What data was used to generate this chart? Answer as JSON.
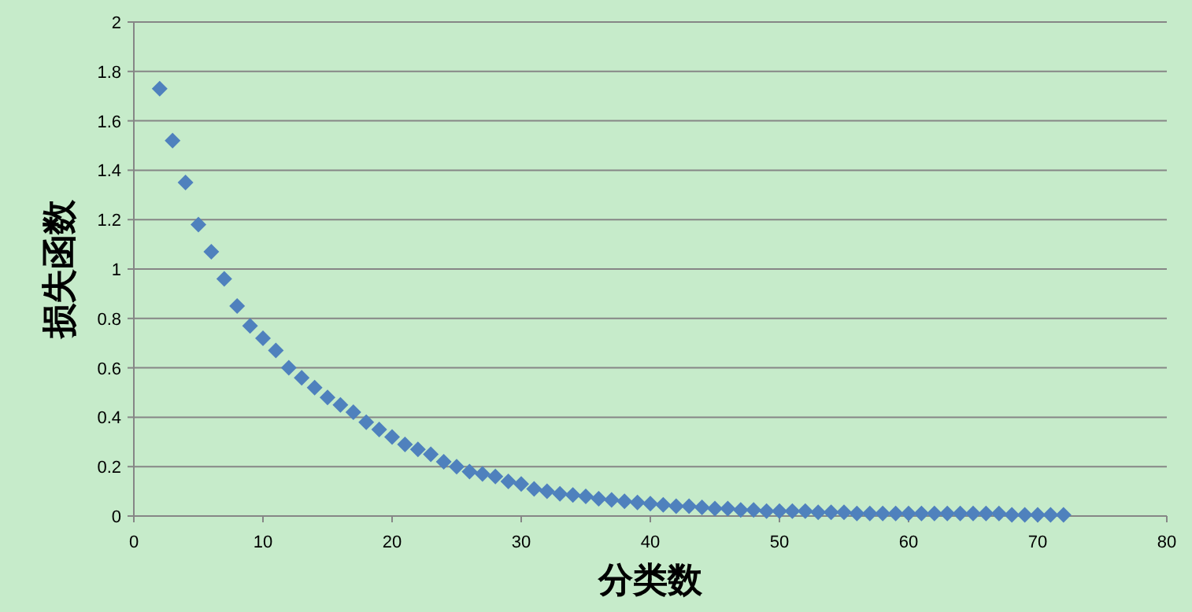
{
  "chart_data": {
    "type": "scatter",
    "xlabel": "分类数",
    "ylabel": "损失函数",
    "xlim": [
      0,
      80
    ],
    "xticks": [
      0,
      10,
      20,
      30,
      40,
      50,
      60,
      70,
      80
    ],
    "ylim": [
      0,
      2
    ],
    "yticks": [
      0,
      {
        "value": 0.2,
        "label": "0.2"
      },
      {
        "value": 0.4,
        "label": "0.4"
      },
      {
        "value": 0.6,
        "label": "0.6"
      },
      {
        "value": 0.8,
        "label": "0.8"
      },
      1,
      {
        "value": 1.2,
        "label": "1.2"
      },
      {
        "value": 1.4,
        "label": "1.4"
      },
      {
        "value": 1.6,
        "label": "1.6"
      },
      {
        "value": 1.8,
        "label": "1.8"
      },
      2
    ],
    "grid": "y",
    "marker": "diamond",
    "series": [
      {
        "color": "#4f81bd",
        "x": [
          2,
          3,
          4,
          5,
          6,
          7,
          8,
          9,
          10,
          11,
          12,
          13,
          14,
          15,
          16,
          17,
          18,
          19,
          20,
          21,
          22,
          23,
          24,
          25,
          26,
          27,
          28,
          29,
          30,
          31,
          32,
          33,
          34,
          35,
          36,
          37,
          38,
          39,
          40,
          41,
          42,
          43,
          44,
          45,
          46,
          47,
          48,
          49,
          50,
          51,
          52,
          53,
          54,
          55,
          56,
          57,
          58,
          59,
          60,
          61,
          62,
          63,
          64,
          65,
          66,
          67,
          68,
          69,
          70,
          71,
          72
        ],
        "values": [
          1.73,
          1.52,
          1.35,
          1.18,
          1.07,
          0.96,
          0.85,
          0.77,
          0.72,
          0.67,
          0.6,
          0.56,
          0.52,
          0.48,
          0.45,
          0.42,
          0.38,
          0.35,
          0.32,
          0.29,
          0.27,
          0.25,
          0.22,
          0.2,
          0.18,
          0.17,
          0.16,
          0.14,
          0.13,
          0.11,
          0.1,
          0.09,
          0.085,
          0.08,
          0.07,
          0.065,
          0.06,
          0.055,
          0.05,
          0.045,
          0.04,
          0.04,
          0.035,
          0.03,
          0.03,
          0.025,
          0.025,
          0.02,
          0.02,
          0.02,
          0.02,
          0.015,
          0.015,
          0.015,
          0.01,
          0.01,
          0.01,
          0.01,
          0.01,
          0.01,
          0.01,
          0.01,
          0.01,
          0.01,
          0.01,
          0.01,
          0.005,
          0.005,
          0.005,
          0.005,
          0.005
        ]
      }
    ]
  }
}
